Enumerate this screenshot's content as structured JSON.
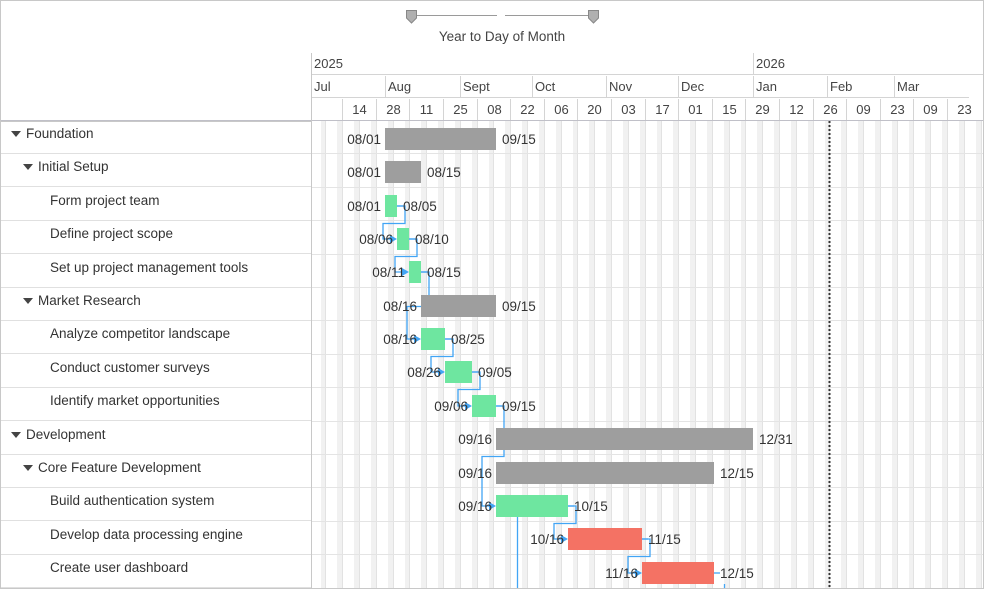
{
  "zoom": {
    "label": "Year to Day of Month"
  },
  "timeline": {
    "years": [
      "2025",
      "2026"
    ],
    "months": [
      "Jul",
      "Aug",
      "Sept",
      "Oct",
      "Nov",
      "Dec",
      "Jan",
      "Feb",
      "Mar"
    ],
    "weeks": [
      "14",
      "28",
      "11",
      "25",
      "08",
      "22",
      "06",
      "20",
      "03",
      "17",
      "01",
      "15",
      "29",
      "12",
      "26",
      "09",
      "23",
      "09",
      "23"
    ]
  },
  "tasks": [
    {
      "name": "Foundation",
      "level": 0,
      "type": "summary",
      "start": "08/01",
      "end": "09/15"
    },
    {
      "name": "Initial Setup",
      "level": 1,
      "type": "summary",
      "start": "08/01",
      "end": "08/15"
    },
    {
      "name": "Form project team",
      "level": 2,
      "type": "task",
      "start": "08/01",
      "end": "08/05"
    },
    {
      "name": "Define project scope",
      "level": 2,
      "type": "task",
      "start": "08/06",
      "end": "08/10"
    },
    {
      "name": "Set up project management tools",
      "level": 2,
      "type": "task",
      "start": "08/11",
      "end": "08/15"
    },
    {
      "name": "Market Research",
      "level": 1,
      "type": "summary",
      "start": "08/16",
      "end": "09/15"
    },
    {
      "name": "Analyze competitor landscape",
      "level": 2,
      "type": "task",
      "start": "08/16",
      "end": "08/25"
    },
    {
      "name": "Conduct customer surveys",
      "level": 2,
      "type": "task",
      "start": "08/26",
      "end": "09/05"
    },
    {
      "name": "Identify market opportunities",
      "level": 2,
      "type": "task",
      "start": "09/06",
      "end": "09/15"
    },
    {
      "name": "Development",
      "level": 0,
      "type": "summary",
      "start": "09/16",
      "end": "12/31"
    },
    {
      "name": "Core Feature Development",
      "level": 1,
      "type": "summary",
      "start": "09/16",
      "end": "12/15"
    },
    {
      "name": "Build authentication system",
      "level": 2,
      "type": "task",
      "start": "09/16",
      "end": "10/15"
    },
    {
      "name": "Develop data processing engine",
      "level": 2,
      "type": "task",
      "start": "10/16",
      "end": "11/15",
      "critical": true
    },
    {
      "name": "Create user dashboard",
      "level": 2,
      "type": "task",
      "start": "11/16",
      "end": "12/15",
      "critical": true
    }
  ],
  "colors": {
    "summary": "#9e9e9e",
    "task": "#6ee6a0",
    "critical": "#f47264",
    "dependency": "#42a5f5",
    "grid": "#e2e2e2",
    "weekend": "#f1f1f1"
  }
}
